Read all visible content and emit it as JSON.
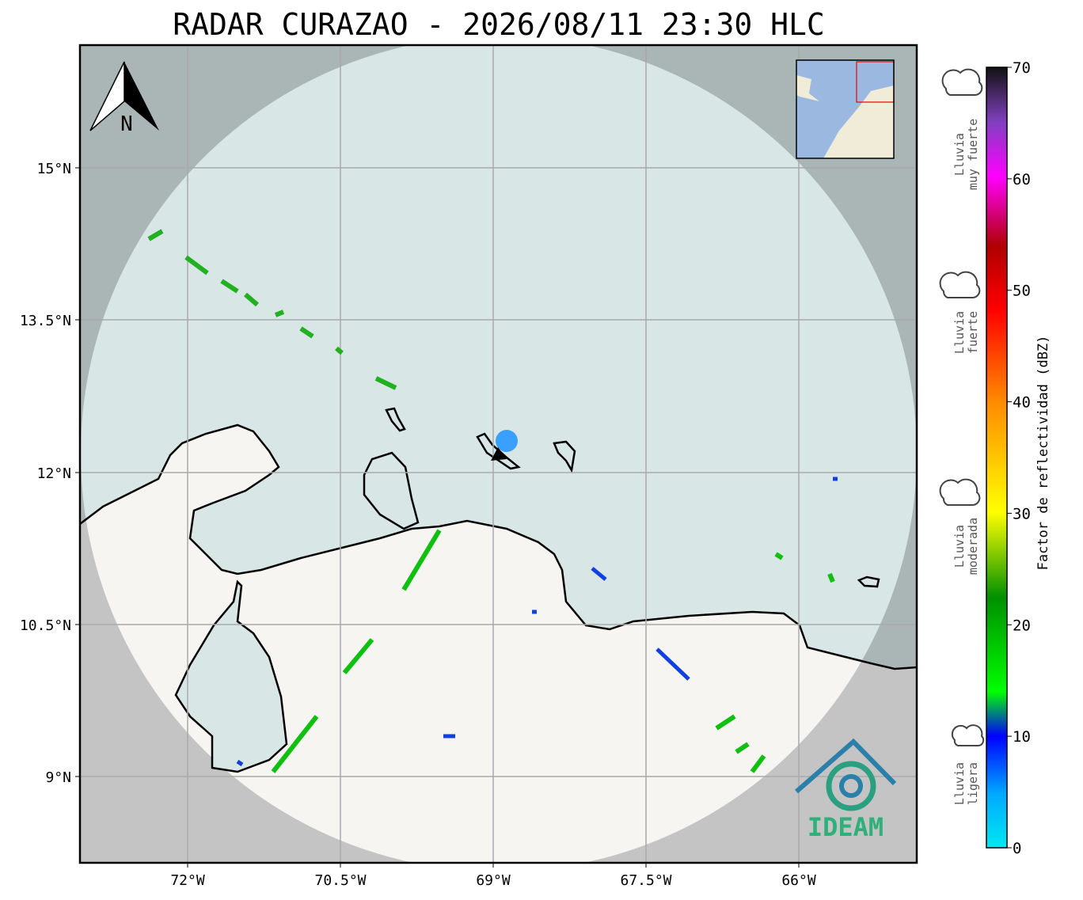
{
  "title": "RADAR CURAZAO - 2026/08/11 23:30 HLC",
  "map": {
    "lat_labels": [
      "15°N",
      "13.5°N",
      "12°N",
      "10.5°N",
      "9°N"
    ],
    "lon_labels": [
      "72°W",
      "70.5°W",
      "69°W",
      "67.5°W",
      "66°W"
    ],
    "north": "N",
    "logo": "IDEAM"
  },
  "colorbar": {
    "label": "Factor de reflectividad (dBZ)",
    "lim": [
      0,
      70
    ],
    "ticks": [
      0,
      10,
      20,
      30,
      40,
      50,
      60,
      70
    ],
    "rain_labels": [
      [
        "Lluvia",
        "muy fuerte"
      ],
      [
        "Lluvia",
        "fuerte"
      ],
      [
        "Lluvia",
        "moderada"
      ],
      [
        "Lluvia",
        "ligera"
      ]
    ]
  }
}
